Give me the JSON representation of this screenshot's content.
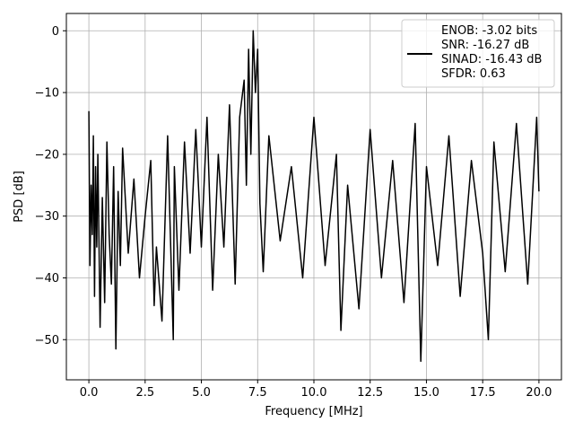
{
  "chart_data": {
    "type": "line",
    "xlabel": "Frequency [MHz]",
    "ylabel": "PSD [dB]",
    "xlim": [
      -1.0,
      21.0
    ],
    "ylim": [
      -56.5,
      2.8
    ],
    "grid": true,
    "xticks": [
      0.0,
      2.5,
      5.0,
      7.5,
      10.0,
      12.5,
      15.0,
      17.5,
      20.0
    ],
    "xtick_labels": [
      "0.0",
      "2.5",
      "5.0",
      "7.5",
      "10.0",
      "12.5",
      "15.0",
      "17.5",
      "20.0"
    ],
    "yticks": [
      0,
      -10,
      -20,
      -30,
      -40,
      -50
    ],
    "ytick_labels": [
      "0",
      "−10",
      "−20",
      "−30",
      "−40",
      "−50"
    ],
    "colors": {
      "line": "#000000",
      "grid": "#b0b0b0"
    },
    "legend": {
      "placement": "top-right",
      "entries": [
        "ENOB: -3.02 bits",
        "SNR: -16.27 dB",
        "SINAD: -16.43 dB",
        "SFDR: 0.63"
      ]
    },
    "series": [
      {
        "x": [
          0,
          0.05,
          0.1,
          0.15,
          0.2,
          0.25,
          0.3,
          0.35,
          0.4,
          0.5,
          0.6,
          0.7,
          0.8,
          0.9,
          1.0,
          1.1,
          1.2,
          1.3,
          1.4,
          1.5,
          1.75,
          2.0,
          2.25,
          2.5,
          2.75,
          2.9,
          3.0,
          3.25,
          3.5,
          3.75,
          3.8,
          4.0,
          4.25,
          4.5,
          4.75,
          5.0,
          5.25,
          5.5,
          5.75,
          6.0,
          6.25,
          6.5,
          6.7,
          6.9,
          7.0,
          7.1,
          7.2,
          7.3,
          7.4,
          7.5,
          7.6,
          7.75,
          8.0,
          8.5,
          9.0,
          9.5,
          10.0,
          10.5,
          11.0,
          11.2,
          11.5,
          12.0,
          12.5,
          13.0,
          13.5,
          14.0,
          14.5,
          14.75,
          15.0,
          15.5,
          16.0,
          16.5,
          17.0,
          17.5,
          17.75,
          18.0,
          18.5,
          19.0,
          19.5,
          19.9,
          20.0
        ],
        "y": [
          -13,
          -38,
          -25,
          -33,
          -17,
          -43,
          -22,
          -35,
          -20,
          -48,
          -27,
          -44,
          -18,
          -33,
          -41,
          -22,
          -51.5,
          -26,
          -38,
          -19,
          -36,
          -24,
          -40,
          -30,
          -21,
          -44.5,
          -35,
          -47,
          -17,
          -50,
          -22,
          -42,
          -18,
          -36,
          -16,
          -35,
          -14,
          -42,
          -20,
          -35,
          -12,
          -41,
          -14,
          -8,
          -25,
          -3,
          -20,
          0,
          -10,
          -3,
          -28,
          -39,
          -17,
          -34,
          -22,
          -40,
          -14,
          -38,
          -20,
          -48.5,
          -25,
          -45,
          -16,
          -40,
          -21,
          -44,
          -15,
          -53.5,
          -22,
          -38,
          -17,
          -43,
          -21,
          -36,
          -50,
          -18,
          -39,
          -15,
          -41,
          -14,
          -26
        ]
      }
    ]
  }
}
